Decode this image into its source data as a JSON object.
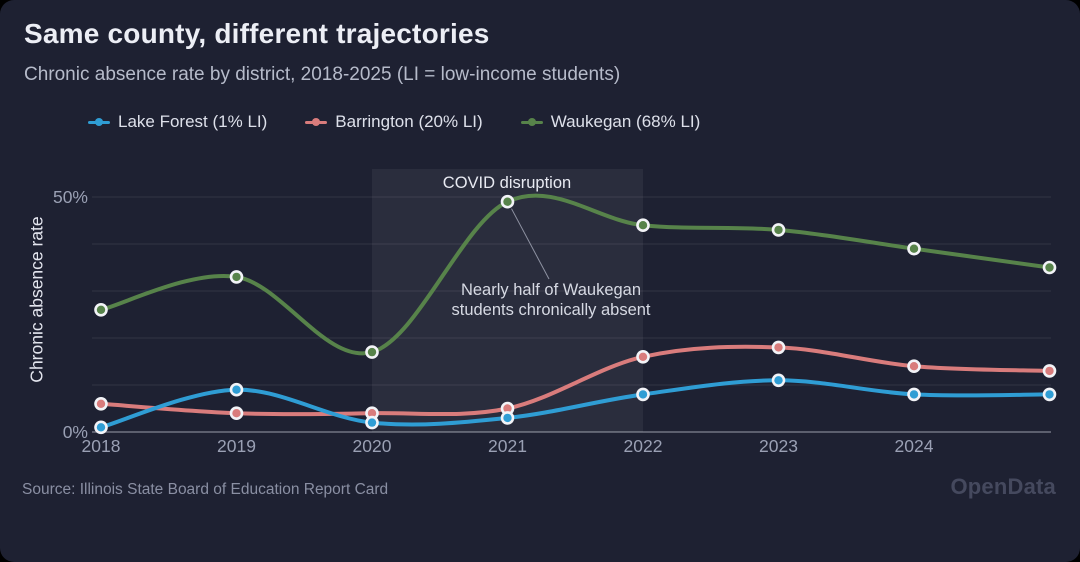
{
  "header": {
    "title": "Same county, different trajectories",
    "subtitle": "Chronic absence rate by district, 2018-2025 (LI = low-income students)"
  },
  "chart_data": {
    "type": "line",
    "x": [
      2018,
      2019,
      2020,
      2021,
      2022,
      2023,
      2024,
      2025
    ],
    "x_tick_labels": [
      "2018",
      "2019",
      "2020",
      "2021",
      "2022",
      "2023",
      "2024"
    ],
    "ylabel": "Chronic absence rate",
    "ylim": [
      0,
      50
    ],
    "grid_step": 10,
    "y_ticks": [
      {
        "value": 0,
        "label": "0%"
      },
      {
        "value": 50,
        "label": "50%"
      }
    ],
    "legend_position": "top-left",
    "series": [
      {
        "name": "Waukegan",
        "legend_label": "Waukegan (68% LI)",
        "color": "#57834a",
        "values": [
          26,
          33,
          17,
          49,
          44,
          43,
          39,
          35
        ]
      },
      {
        "name": "Barrington",
        "legend_label": "Barrington (20% LI)",
        "color": "#d97c7c",
        "values": [
          6,
          4,
          4,
          5,
          16,
          18,
          14,
          13
        ]
      },
      {
        "name": "Lake Forest",
        "legend_label": "Lake Forest (1% LI)",
        "color": "#2f9dd4",
        "values": [
          1,
          9,
          2,
          3,
          8,
          11,
          8,
          8
        ]
      }
    ],
    "covid_band": {
      "x_from": 2020,
      "x_to": 2022
    },
    "annotations": {
      "covid_label": "COVID disruption",
      "note_line1": "Nearly half of Waukegan",
      "note_line2": "students chronically absent",
      "note_points_to": {
        "series": "Waukegan",
        "x": 2021,
        "value": 49
      }
    }
  },
  "footer": {
    "source": "Source: Illinois State Board of Education Report Card",
    "brand": "OpenData"
  }
}
